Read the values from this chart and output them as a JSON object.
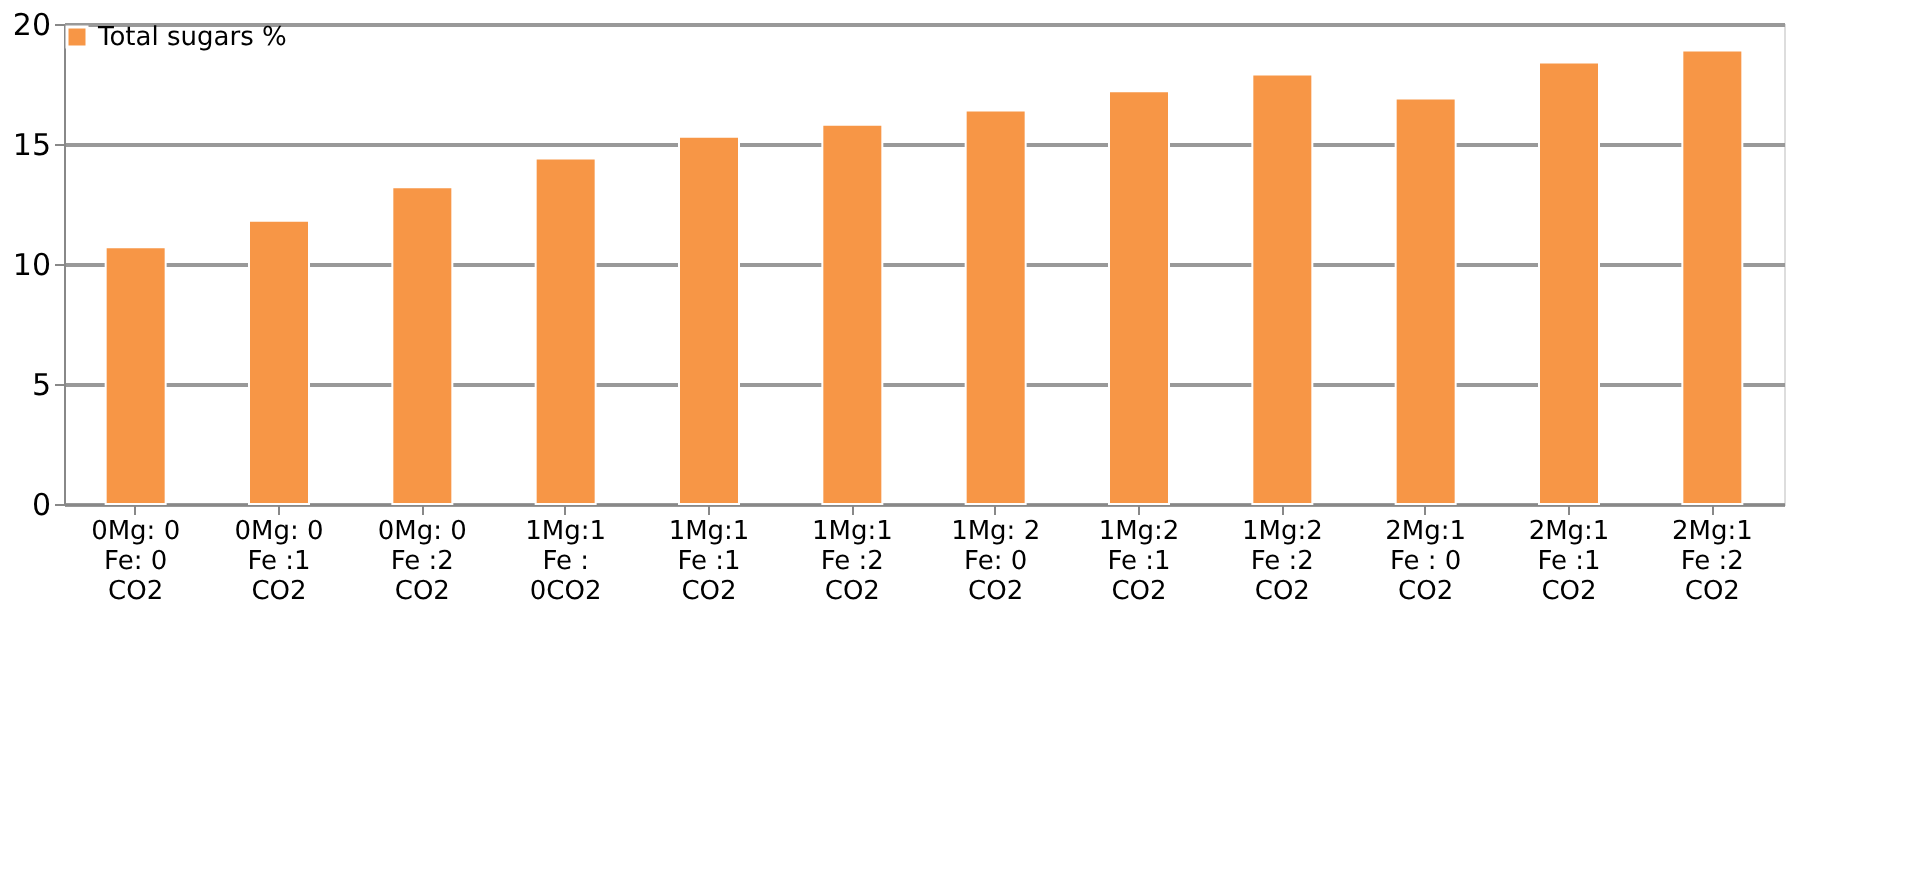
{
  "chart_data": {
    "type": "bar",
    "categories": [
      "0Mg: 0\nFe: 0\nCO2",
      "0Mg: 0\nFe :1\nCO2",
      "0Mg: 0\nFe :2\nCO2",
      "1Mg:1\nFe :\n0CO2",
      "1Mg:1\nFe :1\nCO2",
      "1Mg:1\nFe :2\nCO2",
      "1Mg: 2\nFe: 0\nCO2",
      "1Mg:2\nFe :1\nCO2",
      "1Mg:2\nFe :2\nCO2",
      "2Mg:1\nFe : 0\nCO2",
      "2Mg:1\nFe :1\nCO2",
      "2Mg:1\nFe :2\nCO2"
    ],
    "series": [
      {
        "name": "Total sugars %",
        "color": "#f79646",
        "values": [
          10.7,
          11.8,
          13.2,
          14.4,
          15.3,
          15.8,
          16.4,
          17.2,
          17.9,
          16.9,
          18.4,
          18.9
        ]
      }
    ],
    "ylim": [
      0,
      20
    ],
    "yticks": [
      0,
      5,
      10,
      15,
      20
    ],
    "grid": "y",
    "legend": "top left"
  }
}
